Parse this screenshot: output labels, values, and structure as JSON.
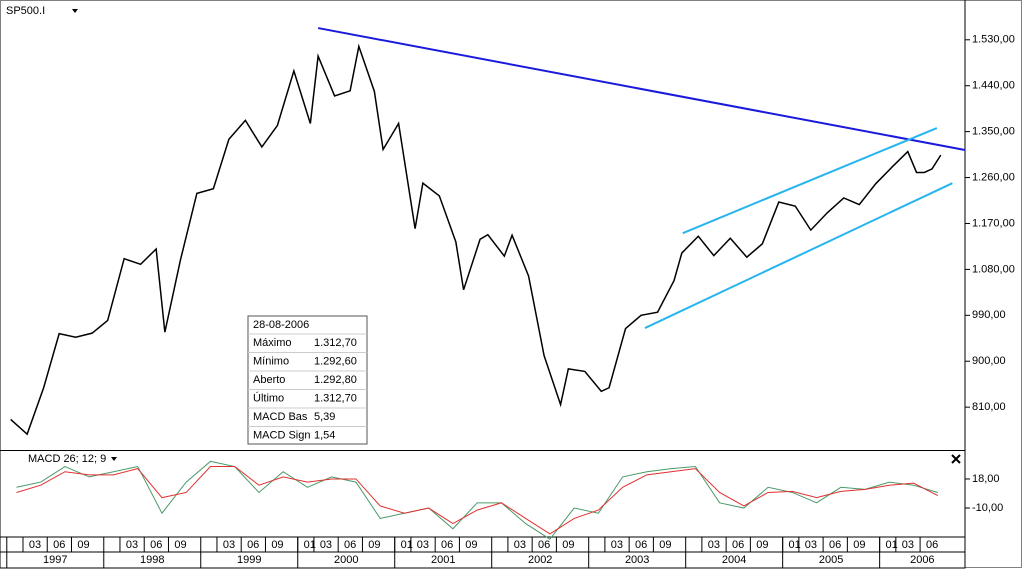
{
  "chart_data": {
    "type": "line",
    "title": "SP500.I",
    "x": [
      1997.04,
      1997.21,
      1997.38,
      1997.54,
      1997.71,
      1997.88,
      1998.04,
      1998.21,
      1998.38,
      1998.54,
      1998.63,
      1998.79,
      1998.96,
      1999.13,
      1999.29,
      1999.46,
      1999.63,
      1999.79,
      1999.96,
      2000.13,
      2000.21,
      2000.38,
      2000.54,
      2000.63,
      2000.79,
      2000.88,
      2001.04,
      2001.21,
      2001.29,
      2001.46,
      2001.63,
      2001.71,
      2001.88,
      2001.96,
      2002.13,
      2002.21,
      2002.38,
      2002.54,
      2002.71,
      2002.79,
      2002.96,
      2003.13,
      2003.21,
      2003.38,
      2003.54,
      2003.71,
      2003.88,
      2003.96,
      2004.13,
      2004.29,
      2004.46,
      2004.63,
      2004.79,
      2004.96,
      2005.13,
      2005.29,
      2005.46,
      2005.63,
      2005.79,
      2005.96,
      2006.13,
      2006.29,
      2006.38,
      2006.46,
      2006.54,
      2006.63
    ],
    "values": [
      786,
      757,
      848,
      954,
      947,
      955,
      980,
      1101,
      1090,
      1120,
      957,
      1098,
      1229,
      1238,
      1335,
      1372,
      1320,
      1362,
      1469,
      1366,
      1498,
      1420,
      1430,
      1517,
      1429,
      1315,
      1366,
      1160,
      1249,
      1224,
      1134,
      1040,
      1139,
      1148,
      1106,
      1147,
      1067,
      911,
      815,
      885,
      880,
      841,
      848,
      964,
      990,
      996,
      1058,
      1112,
      1145,
      1107,
      1141,
      1104,
      1130,
      1212,
      1204,
      1157,
      1191,
      1220,
      1207,
      1248,
      1281,
      1311,
      1270,
      1270,
      1277,
      1304
    ],
    "color": "#000000",
    "ylim": [
      726,
      1608
    ],
    "yticks": [
      {
        "value": 1530,
        "label": "1.530,00"
      },
      {
        "value": 1440,
        "label": "1.440,00"
      },
      {
        "value": 1350,
        "label": "1.350,00"
      },
      {
        "value": 1260,
        "label": "1.260,00"
      },
      {
        "value": 1170,
        "label": "1.170,00"
      },
      {
        "value": 1080,
        "label": "1.080,00"
      },
      {
        "value": 990,
        "label": "990,00"
      },
      {
        "value": 900,
        "label": "900,00"
      },
      {
        "value": 810,
        "label": "810,00"
      }
    ],
    "xlim": [
      1996.93,
      2006.88
    ],
    "xticks": [
      {
        "value": 1997.167,
        "label": "03"
      },
      {
        "value": 1997.417,
        "label": "06"
      },
      {
        "value": 1997.667,
        "label": "09"
      },
      {
        "value": 1998.167,
        "label": "03"
      },
      {
        "value": 1998.417,
        "label": "06"
      },
      {
        "value": 1998.667,
        "label": "09"
      },
      {
        "value": 1999.167,
        "label": "03"
      },
      {
        "value": 1999.417,
        "label": "06"
      },
      {
        "value": 1999.667,
        "label": "09"
      },
      {
        "value": 2000,
        "label": "01"
      },
      {
        "value": 2000.167,
        "label": "03"
      },
      {
        "value": 2000.417,
        "label": "06"
      },
      {
        "value": 2000.667,
        "label": "09"
      },
      {
        "value": 2001,
        "label": "01"
      },
      {
        "value": 2001.167,
        "label": "03"
      },
      {
        "value": 2001.417,
        "label": "06"
      },
      {
        "value": 2001.667,
        "label": "09"
      },
      {
        "value": 2002.167,
        "label": "03"
      },
      {
        "value": 2002.417,
        "label": "06"
      },
      {
        "value": 2002.667,
        "label": "09"
      },
      {
        "value": 2003.167,
        "label": "03"
      },
      {
        "value": 2003.417,
        "label": "06"
      },
      {
        "value": 2003.667,
        "label": "09"
      },
      {
        "value": 2004.167,
        "label": "03"
      },
      {
        "value": 2004.417,
        "label": "06"
      },
      {
        "value": 2004.667,
        "label": "09"
      },
      {
        "value": 2005,
        "label": "01"
      },
      {
        "value": 2005.167,
        "label": "03"
      },
      {
        "value": 2005.417,
        "label": "06"
      },
      {
        "value": 2005.667,
        "label": "09"
      },
      {
        "value": 2006,
        "label": "01"
      },
      {
        "value": 2006.167,
        "label": "03"
      },
      {
        "value": 2006.417,
        "label": "06"
      }
    ],
    "year_ticks": [
      {
        "value": 1997,
        "label": "1997"
      },
      {
        "value": 1998,
        "label": "1998"
      },
      {
        "value": 1999,
        "label": "1999"
      },
      {
        "value": 2000,
        "label": "2000"
      },
      {
        "value": 2001,
        "label": "2001"
      },
      {
        "value": 2002,
        "label": "2002"
      },
      {
        "value": 2003,
        "label": "2003"
      },
      {
        "value": 2004,
        "label": "2004"
      },
      {
        "value": 2005,
        "label": "2005"
      },
      {
        "value": 2006,
        "label": "2006"
      }
    ],
    "trendlines": [
      {
        "color": "#1a1adc",
        "x": [
          2000.21,
          2006.88
        ],
        "y": [
          1553,
          1314
        ]
      },
      {
        "color": "#27b4ef",
        "x": [
          2003.97,
          2006.59
        ],
        "y": [
          1151,
          1357
        ]
      },
      {
        "color": "#27b4ef",
        "x": [
          2003.58,
          2006.75
        ],
        "y": [
          965,
          1249
        ]
      }
    ],
    "info_box": {
      "date": "28-08-2006",
      "rows": [
        {
          "label": "Máximo",
          "value": "1.312,70",
          "color": "#000000"
        },
        {
          "label": "Mínimo",
          "value": "1.292,60",
          "color": "#000000"
        },
        {
          "label": "Aberto",
          "value": "1.292,80",
          "color": "#000000"
        },
        {
          "label": "Último",
          "value": "1.312,70",
          "color": "#008a00"
        },
        {
          "label": "MACD Bas",
          "value": "5,39",
          "color": "#008a00"
        },
        {
          "label": "MACD Sign",
          "value": "1,54",
          "color": "#d00000"
        }
      ]
    },
    "indicator": {
      "title": "MACD 26; 12; 9",
      "x": [
        1997.1,
        1997.35,
        1997.6,
        1997.85,
        1998.1,
        1998.35,
        1998.6,
        1998.85,
        1999.1,
        1999.35,
        1999.6,
        1999.85,
        2000.1,
        2000.35,
        2000.6,
        2000.85,
        2001.1,
        2001.35,
        2001.6,
        2001.85,
        2002.1,
        2002.35,
        2002.6,
        2002.85,
        2003.1,
        2003.35,
        2003.6,
        2003.85,
        2004.1,
        2004.35,
        2004.6,
        2004.85,
        2005.1,
        2005.35,
        2005.6,
        2005.85,
        2006.1,
        2006.35,
        2006.6
      ],
      "series": [
        {
          "name": "MACD Bas",
          "color": "#4a9a6a",
          "values": [
            10,
            15,
            30,
            20,
            25,
            30,
            -15,
            15,
            35,
            30,
            5,
            25,
            10,
            20,
            15,
            -20,
            -15,
            -10,
            -30,
            -5,
            -5,
            -25,
            -40,
            -10,
            -15,
            20,
            25,
            28,
            30,
            -5,
            -10,
            10,
            5,
            -5,
            10,
            8,
            15,
            12,
            5
          ]
        },
        {
          "name": "MACD Sign",
          "color": "#e03030",
          "values": [
            5,
            12,
            25,
            22,
            22,
            28,
            0,
            5,
            30,
            30,
            12,
            20,
            15,
            18,
            18,
            -8,
            -15,
            -10,
            -25,
            -12,
            -5,
            -20,
            -35,
            -20,
            -12,
            10,
            22,
            25,
            28,
            5,
            -8,
            5,
            6,
            0,
            6,
            8,
            12,
            14,
            2
          ]
        }
      ],
      "ylim": [
        -36,
        44
      ],
      "yticks": [
        {
          "value": 18,
          "label": "18,00"
        },
        {
          "value": -10,
          "label": "-10,00"
        }
      ]
    }
  }
}
